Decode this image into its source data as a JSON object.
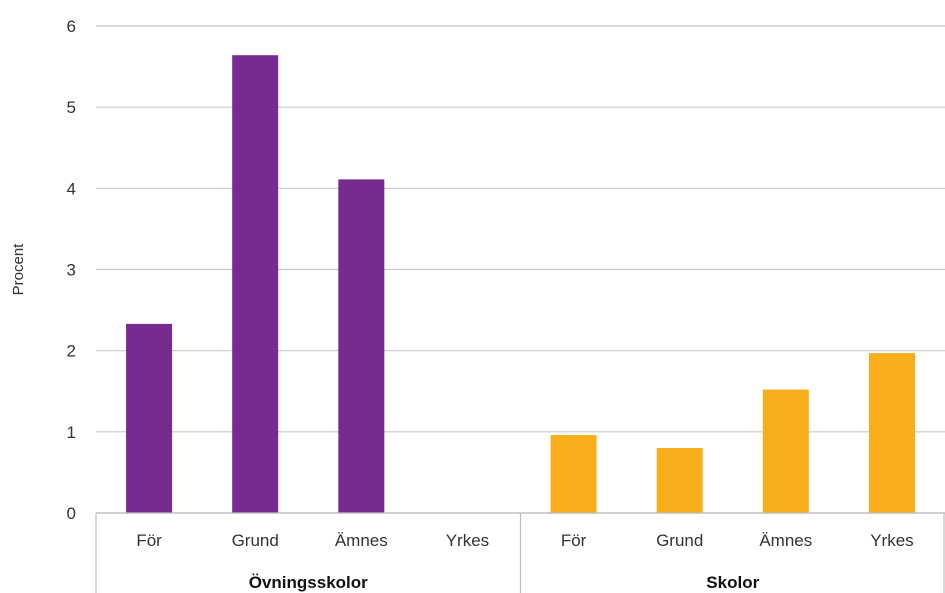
{
  "chart_data": {
    "type": "bar",
    "ylabel": "Procent",
    "ylim": [
      0,
      6
    ],
    "yticks": [
      0,
      1,
      2,
      3,
      4,
      5,
      6
    ],
    "grid": true,
    "groups": [
      {
        "name": "Övningsskolor",
        "color": "#772A8F",
        "categories": [
          "För",
          "Grund",
          "Ämnes",
          "Yrkes"
        ],
        "values": [
          2.33,
          5.64,
          4.11,
          0
        ]
      },
      {
        "name": "Skolor",
        "color": "#F8AD1B",
        "categories": [
          "För",
          "Grund",
          "Ämnes",
          "Yrkes"
        ],
        "values": [
          0.96,
          0.8,
          1.52,
          1.97
        ]
      }
    ]
  }
}
